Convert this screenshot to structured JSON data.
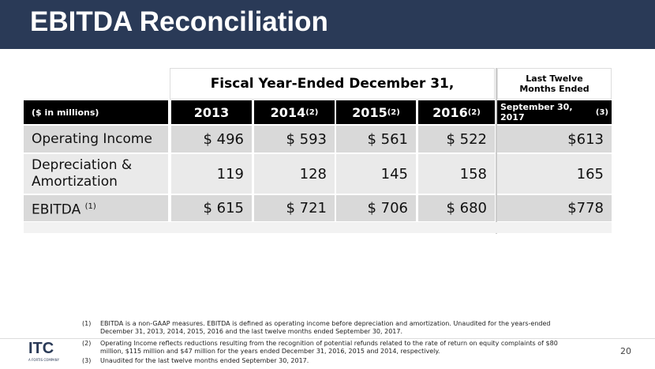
{
  "header": {
    "title": "EBITDA Reconciliation"
  },
  "table": {
    "group_header": "Fiscal Year-Ended December 31,",
    "ltm_header": "Last Twelve Months Ended",
    "columns": [
      {
        "text": "($ in millions)"
      },
      {
        "text": "2013"
      },
      {
        "text": "2014",
        "note": "(2)"
      },
      {
        "text": "2015",
        "note": "(2)"
      },
      {
        "text": "2016",
        "note": "(2)"
      },
      {
        "text": "September 30, 2017",
        "note": "(3)"
      }
    ],
    "rows": [
      {
        "label": "Operating Income",
        "cells": [
          "$ 496",
          "$ 593",
          "$ 561",
          "$ 522",
          "$613"
        ]
      },
      {
        "label": "Depreciation & Amortization",
        "cells": [
          "119",
          "128",
          "145",
          "158",
          "165"
        ]
      },
      {
        "label": "EBITDA",
        "note": "(1)",
        "cells": [
          "$ 615",
          "$ 721",
          "$ 706",
          "$ 680",
          "$778"
        ]
      }
    ]
  },
  "footnotes": [
    {
      "number": "(1)",
      "text": "EBITDA is a non-GAAP measures.  EBITDA is defined as operating income before depreciation and amortization. Unaudited for the years-ended December 31, 2013, 2014, 2015, 2016 and the last twelve months ended September 30, 2017."
    },
    {
      "number": "(2)",
      "text": "Operating Income reflects reductions resulting from the recognition of potential refunds related to the rate of return on equity complaints of $80 million, $115 million and $47 million for the years ended December 31, 2016, 2015 and 2014, respectively."
    },
    {
      "number": "(3)",
      "text": "Unaudited for the last twelve months ended September 30, 2017."
    }
  ],
  "logo": {
    "name": "ITC",
    "tagline": "A FORTIS COMPANY"
  },
  "page_number": "20"
}
